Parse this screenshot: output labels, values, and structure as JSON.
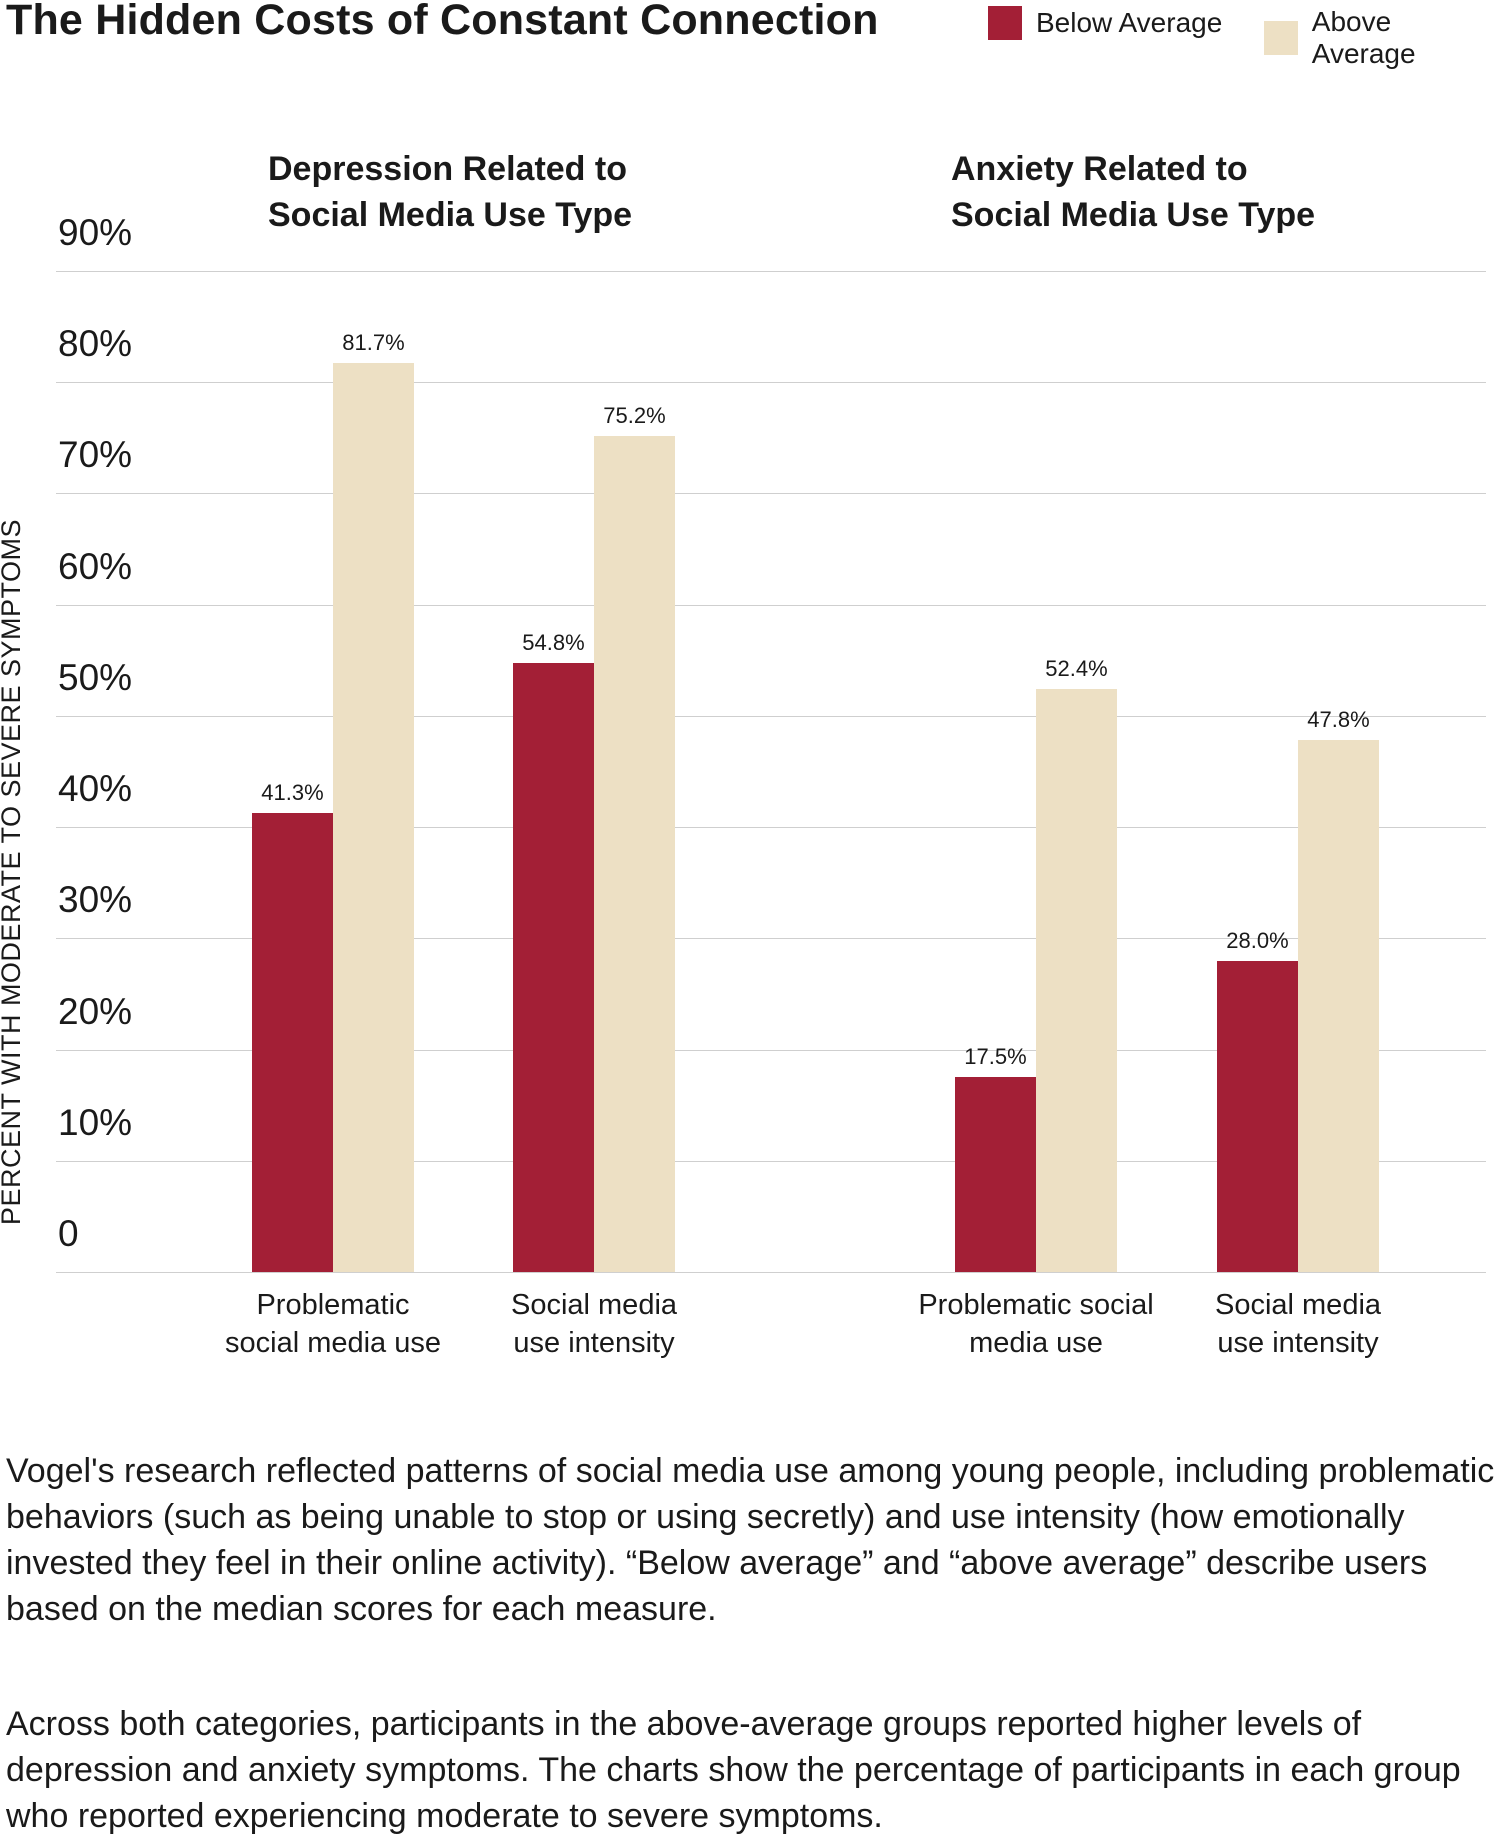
{
  "title": "The Hidden Costs of Constant Connection",
  "legend": {
    "below": "Below Average",
    "above": "Above Average"
  },
  "colors": {
    "below": "#a31f36",
    "above": "#ede0c4",
    "grid": "#cfcfcf"
  },
  "chart_data": {
    "type": "bar",
    "ylabel": "PERCENT WITH MODERATE TO SEVERE SYMPTOMS",
    "ylim": [
      0,
      90
    ],
    "yticks": [
      "0",
      "10%",
      "20%",
      "30%",
      "40%",
      "50%",
      "60%",
      "70%",
      "80%",
      "90%"
    ],
    "panels": [
      {
        "title_line1": "Depression Related to",
        "title_line2": "Social Media Use Type",
        "categories": [
          {
            "line1": "Problematic",
            "line2": "social media use"
          },
          {
            "line1": "Social media",
            "line2": "use intensity"
          }
        ],
        "series": [
          {
            "name": "Below Average",
            "values": [
              41.3,
              54.8
            ],
            "labels": [
              "41.3%",
              "54.8%"
            ]
          },
          {
            "name": "Above Average",
            "values": [
              81.7,
              75.2
            ],
            "labels": [
              "81.7%",
              "75.2%"
            ]
          }
        ]
      },
      {
        "title_line1": "Anxiety Related to",
        "title_line2": "Social Media Use Type",
        "categories": [
          {
            "line1": "Problematic social",
            "line2": "media use"
          },
          {
            "line1": "Social media",
            "line2": "use intensity"
          }
        ],
        "series": [
          {
            "name": "Below Average",
            "values": [
              17.5,
              28.0
            ],
            "labels": [
              "17.5%",
              "28.0%"
            ]
          },
          {
            "name": "Above Average",
            "values": [
              52.4,
              47.8
            ],
            "labels": [
              "52.4%",
              "47.8%"
            ]
          }
        ]
      }
    ]
  },
  "notes": {
    "paragraph1": "Vogel's research reflected patterns of social media use among young people, including problematic behaviors (such as being unable to stop or using secretly) and use intensity (how emotionally invested they feel in their online activity).  “Below average” and “above average” describe users based on the median scores for each measure.",
    "paragraph2": "Across both categories, participants in the above-average groups reported higher levels of depression and anxiety symptoms. The charts show the percentage of participants in each group who reported experiencing moderate to severe symptoms."
  }
}
